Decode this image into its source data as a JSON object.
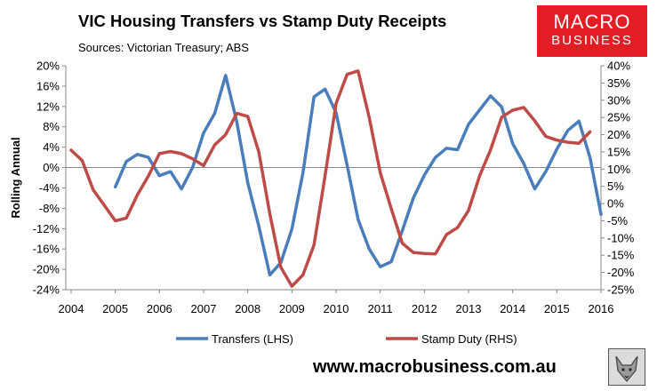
{
  "chart_data": {
    "type": "line",
    "title": "VIC Housing Transfers vs Stamp Duty Receipts",
    "subtitle": "Sources: Victorian Treasury; ABS",
    "ylabel": "Rolling Annual",
    "x_ticks": [
      "2004",
      "2005",
      "2006",
      "2007",
      "2008",
      "2009",
      "2010",
      "2011",
      "2012",
      "2013",
      "2014",
      "2015",
      "2016"
    ],
    "xlim": [
      2004,
      2016
    ],
    "y_left": {
      "lim": [
        -24,
        20
      ],
      "ticks": [
        "20%",
        "16%",
        "12%",
        "8%",
        "4%",
        "0%",
        "-4%",
        "-8%",
        "-12%",
        "-16%",
        "-20%",
        "-24%"
      ],
      "tick_values": [
        20,
        16,
        12,
        8,
        4,
        0,
        -4,
        -8,
        -12,
        -16,
        -20,
        -24
      ]
    },
    "y_right": {
      "lim": [
        -25,
        40
      ],
      "ticks": [
        "40%",
        "35%",
        "30%",
        "25%",
        "20%",
        "15%",
        "10%",
        "5%",
        "0%",
        "-5%",
        "-10%",
        "-15%",
        "-20%",
        "-25%"
      ],
      "tick_values": [
        40,
        35,
        30,
        25,
        20,
        15,
        10,
        5,
        0,
        -5,
        -10,
        -15,
        -20,
        -25
      ]
    },
    "grid": "horizontal zero line only",
    "legend_position": "bottom",
    "series": [
      {
        "name": "Transfers (LHS)",
        "axis": "left",
        "color": "#4a7ebb",
        "x": [
          2005,
          2005.25,
          2005.5,
          2005.75,
          2006,
          2006.25,
          2006.5,
          2006.75,
          2007,
          2007.25,
          2007.5,
          2007.75,
          2008,
          2008.25,
          2008.5,
          2008.75,
          2009,
          2009.25,
          2009.5,
          2009.75,
          2010,
          2010.25,
          2010.5,
          2010.75,
          2011,
          2011.25,
          2011.5,
          2011.75,
          2012,
          2012.25,
          2012.5,
          2012.75,
          2013,
          2013.25,
          2013.5,
          2013.75,
          2014,
          2014.25,
          2014.5,
          2014.75,
          2015,
          2015.25,
          2015.5,
          2015.75,
          2016
        ],
        "values": [
          -3.8,
          1.2,
          2.6,
          2.0,
          -1.6,
          -0.8,
          -4.2,
          0.0,
          6.8,
          10.6,
          18.1,
          9.0,
          -3.0,
          -11.5,
          -21.1,
          -18.7,
          -12.1,
          -1.0,
          13.9,
          15.4,
          10.8,
          0.5,
          -10.2,
          -16.0,
          -19.5,
          -18.5,
          -12.4,
          -6.0,
          -1.5,
          2.0,
          3.8,
          3.5,
          8.5,
          11.3,
          14.1,
          11.9,
          4.7,
          0.8,
          -4.2,
          -0.8,
          3.6,
          7.3,
          9.1,
          2.0,
          -9.2
        ]
      },
      {
        "name": "Stamp Duty (RHS)",
        "axis": "right",
        "color": "#be4b48",
        "x": [
          2004,
          2004.25,
          2004.5,
          2004.75,
          2005,
          2005.25,
          2005.5,
          2005.75,
          2006,
          2006.25,
          2006.5,
          2006.75,
          2007,
          2007.25,
          2007.5,
          2007.75,
          2008,
          2008.25,
          2008.5,
          2008.75,
          2009,
          2009.25,
          2009.5,
          2009.75,
          2010,
          2010.25,
          2010.5,
          2010.75,
          2011,
          2011.25,
          2011.5,
          2011.75,
          2012,
          2012.25,
          2012.5,
          2012.75,
          2013,
          2013.25,
          2013.5,
          2013.75,
          2014,
          2014.25,
          2014.5,
          2014.75,
          2015,
          2015.25,
          2015.5,
          2015.75
        ],
        "values": [
          15.5,
          12.5,
          4.0,
          -0.5,
          -5.0,
          -4.2,
          2.5,
          8.0,
          14.5,
          15.1,
          14.5,
          13.0,
          11.0,
          17.0,
          20.0,
          26.2,
          25.3,
          15.0,
          -3.0,
          -18.5,
          -24.0,
          -20.7,
          -12.0,
          8.0,
          29.0,
          37.5,
          38.5,
          25.0,
          9.0,
          -1.5,
          -11.5,
          -14.2,
          -14.5,
          -14.6,
          -9.0,
          -7.0,
          -2.0,
          8.0,
          15.6,
          25.1,
          27.1,
          27.9,
          24.0,
          19.5,
          18.4,
          17.8,
          17.5,
          20.8
        ]
      }
    ]
  },
  "logo": {
    "line1": "MACRO",
    "line2": "BUSINESS"
  },
  "website": "www.macrobusiness.com.au"
}
